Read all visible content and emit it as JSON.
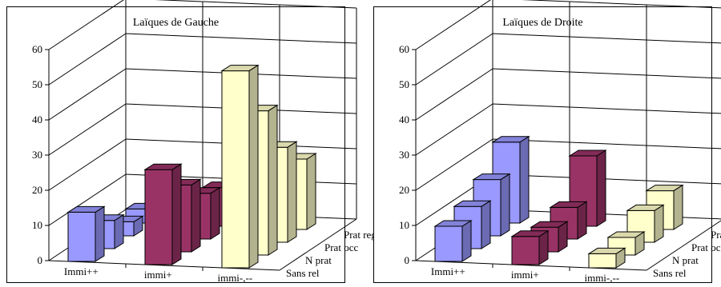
{
  "chart_data": [
    {
      "type": "bar",
      "title": "Laïques de Gauche",
      "categories": [
        "Immi++",
        "immi+",
        "immi-,--"
      ],
      "series": [
        {
          "name": "Sans rel",
          "values": [
            14,
            27,
            56
          ]
        },
        {
          "name": "N prat",
          "values": [
            8,
            19,
            41
          ]
        },
        {
          "name": "Prat occ",
          "values": [
            4,
            13,
            27
          ]
        },
        {
          "name": "Prat reg",
          "values": [
            4,
            11,
            20
          ]
        }
      ],
      "yticks": [
        "0",
        "10",
        "20",
        "30",
        "40",
        "50",
        "60"
      ],
      "ylim": [
        0,
        60
      ],
      "colors": [
        "#9999ff",
        "#993366",
        "#ffffcc"
      ]
    },
    {
      "type": "bar",
      "title": "Laïques de Droite",
      "categories": [
        "Immi++",
        "immi+",
        "immi-,--"
      ],
      "series": [
        {
          "name": "Sans rel",
          "values": [
            10,
            8,
            4
          ]
        },
        {
          "name": "N prat",
          "values": [
            12,
            7,
            5
          ]
        },
        {
          "name": "Prat occ",
          "values": [
            16,
            9,
            9
          ]
        },
        {
          "name": "Prat reg",
          "values": [
            23,
            20,
            11
          ]
        }
      ],
      "yticks": [
        "0",
        "10",
        "20",
        "30",
        "40",
        "50",
        "60"
      ],
      "ylim": [
        0,
        60
      ],
      "colors": [
        "#9999ff",
        "#993366",
        "#ffffcc"
      ]
    }
  ]
}
